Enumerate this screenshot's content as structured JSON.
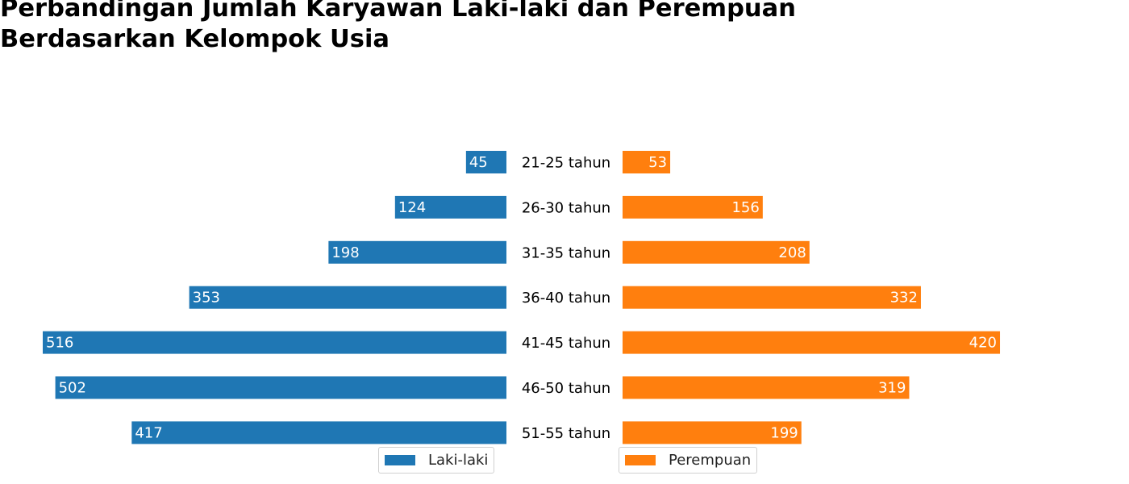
{
  "chart_data": {
    "type": "bar",
    "orientation": "horizontal-butterfly",
    "title_lines": [
      "Perbandingan Jumlah Karyawan Laki-laki dan Perempuan",
      "Berdasarkan Kelompok Usia"
    ],
    "categories": [
      "21-25 tahun",
      "26-30 tahun",
      "31-35 tahun",
      "36-40 tahun",
      "41-45 tahun",
      "46-50 tahun",
      "51-55 tahun"
    ],
    "series": [
      {
        "name": "Laki-laki",
        "color": "#1f77b4",
        "side": "left",
        "values": [
          45,
          124,
          198,
          353,
          516,
          502,
          417
        ]
      },
      {
        "name": "Perempuan",
        "color": "#ff7f0e",
        "side": "right",
        "values": [
          53,
          156,
          208,
          332,
          420,
          319,
          199
        ]
      }
    ],
    "xlim": [
      0,
      516
    ],
    "grid": false,
    "legend": "bottom-center"
  }
}
